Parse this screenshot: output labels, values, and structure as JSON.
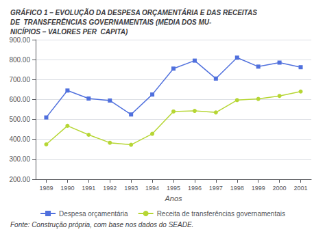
{
  "chart_data": {
    "type": "line",
    "title": "GRÁFICO 1 – EVOLUÇÃO DA DESPESA ORÇAMENTÁRIA E DAS RECEITAS\nDE  TRANSFERÊNCIAS GOVERNAMENTAIS (MÉDIA DOS MU-\nNICÍPIOS – VALORES PER  CAPITA)",
    "x_label": "Anos",
    "annotations": [
      "Fonte: Construção própria, com base nos dados do SEADE."
    ],
    "x": [
      1989,
      1990,
      1991,
      1992,
      1993,
      1994,
      1995,
      1996,
      1997,
      1998,
      1999,
      2000,
      2001
    ],
    "xlim": [
      1988.5,
      2001.5
    ],
    "xticks": [
      1989,
      1990,
      1991,
      1992,
      1993,
      1994,
      1995,
      1996,
      1997,
      1998,
      1999,
      2000,
      2001
    ],
    "ylim": [
      200,
      900
    ],
    "yticks": [
      {
        "value": 200,
        "label": "200.00"
      },
      {
        "value": 300,
        "label": "300.00"
      },
      {
        "value": 400,
        "label": "400.00"
      },
      {
        "value": 500,
        "label": "500.00"
      },
      {
        "value": 600,
        "label": "600.00"
      },
      {
        "value": 700,
        "label": "700.00"
      },
      {
        "value": 800,
        "label": "800.00"
      },
      {
        "value": 900,
        "label": "900.00"
      }
    ],
    "grid": true,
    "legend": "bottom",
    "series": [
      {
        "name": "Despesa orçamentária",
        "marker": "square",
        "values": [
          510,
          645,
          605,
          595,
          525,
          625,
          755,
          795,
          705,
          810,
          765,
          785,
          762
        ]
      },
      {
        "name": "Receita de transferências governamentais",
        "marker": "circle",
        "values": [
          375,
          468,
          423,
          383,
          373,
          428,
          540,
          543,
          535,
          597,
          603,
          618,
          640
        ]
      }
    ]
  }
}
